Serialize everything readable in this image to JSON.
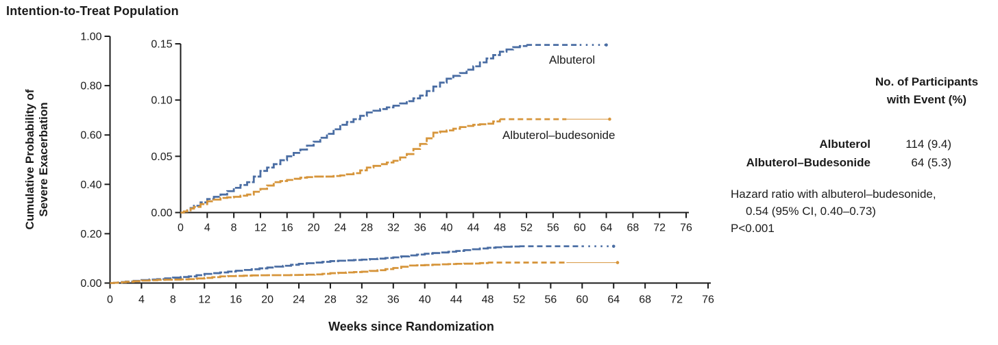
{
  "title": "Intention-to-Treat Population",
  "colors": {
    "albuterol": "#4a6da3",
    "albuterol_budesonide": "#d6953b",
    "axis": "#1b1b1b",
    "background": "#ffffff"
  },
  "chart_data": {
    "type": "line",
    "subtype": "kaplan-meier cumulative incidence step curves (main plot + magnified inset of same data)",
    "title": "Intention-to-Treat Population",
    "xlabel": "Weeks since Randomization",
    "ylabel_line1": "Cumulative Probability of",
    "ylabel_line2": "Severe Exacerbation",
    "xlim": [
      0,
      76
    ],
    "x_ticks": [
      0,
      4,
      8,
      12,
      16,
      20,
      24,
      28,
      32,
      36,
      40,
      44,
      48,
      52,
      56,
      60,
      64,
      68,
      72,
      76
    ],
    "grid": false,
    "legend_position": "labels next to curves",
    "views": [
      {
        "id": "main",
        "ylim": [
          0,
          1.0
        ],
        "y_ticks": [
          0,
          0.2,
          0.4,
          0.6,
          0.8,
          1.0
        ],
        "y_tick_labels": [
          "0.00",
          "0.20",
          "0.40",
          "0.60",
          "0.80",
          "1.00"
        ],
        "show_xlabel": true
      },
      {
        "id": "inset",
        "ylim": [
          0,
          0.15
        ],
        "y_ticks": [
          0,
          0.05,
          0.1,
          0.15
        ],
        "y_tick_labels": [
          "0.00",
          "0.05",
          "0.10",
          "0.15"
        ],
        "note": "magnified 0–0.15 view of the same curves"
      }
    ],
    "series": [
      {
        "name": "Albuterol",
        "label": "Albuterol",
        "color": "#4a6da3",
        "points": [
          [
            0,
            0
          ],
          [
            1,
            0.002
          ],
          [
            2,
            0.006
          ],
          [
            4,
            0.012
          ],
          [
            6,
            0.016
          ],
          [
            8,
            0.022
          ],
          [
            10,
            0.027
          ],
          [
            12,
            0.037
          ],
          [
            14,
            0.043
          ],
          [
            16,
            0.05
          ],
          [
            18,
            0.056
          ],
          [
            20,
            0.063
          ],
          [
            22,
            0.07
          ],
          [
            24,
            0.078
          ],
          [
            26,
            0.083
          ],
          [
            28,
            0.089
          ],
          [
            30,
            0.092
          ],
          [
            32,
            0.095
          ],
          [
            34,
            0.099
          ],
          [
            36,
            0.104
          ],
          [
            38,
            0.112
          ],
          [
            40,
            0.119
          ],
          [
            42,
            0.124
          ],
          [
            44,
            0.13
          ],
          [
            46,
            0.137
          ],
          [
            48,
            0.143
          ],
          [
            50,
            0.147
          ],
          [
            52,
            0.149
          ],
          [
            64,
            0.149
          ]
        ],
        "final_value": 0.149,
        "plateau_start": 52,
        "dash_end": 60,
        "tail_end": 64,
        "tail_style": "dots"
      },
      {
        "name": "Albuterol–budesonide",
        "label": "Albuterol–budesonide",
        "color": "#d6953b",
        "points": [
          [
            0,
            0
          ],
          [
            1,
            0.002
          ],
          [
            2,
            0.005
          ],
          [
            4,
            0.01
          ],
          [
            6,
            0.013
          ],
          [
            8,
            0.014
          ],
          [
            10,
            0.016
          ],
          [
            12,
            0.021
          ],
          [
            14,
            0.027
          ],
          [
            16,
            0.029
          ],
          [
            18,
            0.031
          ],
          [
            20,
            0.032
          ],
          [
            22,
            0.032
          ],
          [
            24,
            0.033
          ],
          [
            26,
            0.035
          ],
          [
            28,
            0.04
          ],
          [
            30,
            0.043
          ],
          [
            32,
            0.046
          ],
          [
            34,
            0.052
          ],
          [
            36,
            0.061
          ],
          [
            38,
            0.071
          ],
          [
            40,
            0.073
          ],
          [
            42,
            0.076
          ],
          [
            44,
            0.078
          ],
          [
            46,
            0.079
          ],
          [
            48,
            0.083
          ],
          [
            64.5,
            0.083
          ]
        ],
        "final_value": 0.083,
        "plateau_start": 48,
        "dash_end": 58,
        "tail_end": 64.5,
        "tail_style": "thin_line_dot"
      }
    ]
  },
  "side_panel": {
    "header_line1": "No. of Participants",
    "header_line2": "with Event (%)",
    "rows": [
      {
        "label": "Albuterol",
        "value": "114 (9.4)"
      },
      {
        "label": "Albuterol–Budesonide",
        "value": "64 (5.3)"
      }
    ],
    "hazard_line1": "Hazard ratio with albuterol–budesonide,",
    "hazard_line2": "0.54 (95% CI, 0.40–0.73)",
    "p_value": "P<0.001"
  }
}
